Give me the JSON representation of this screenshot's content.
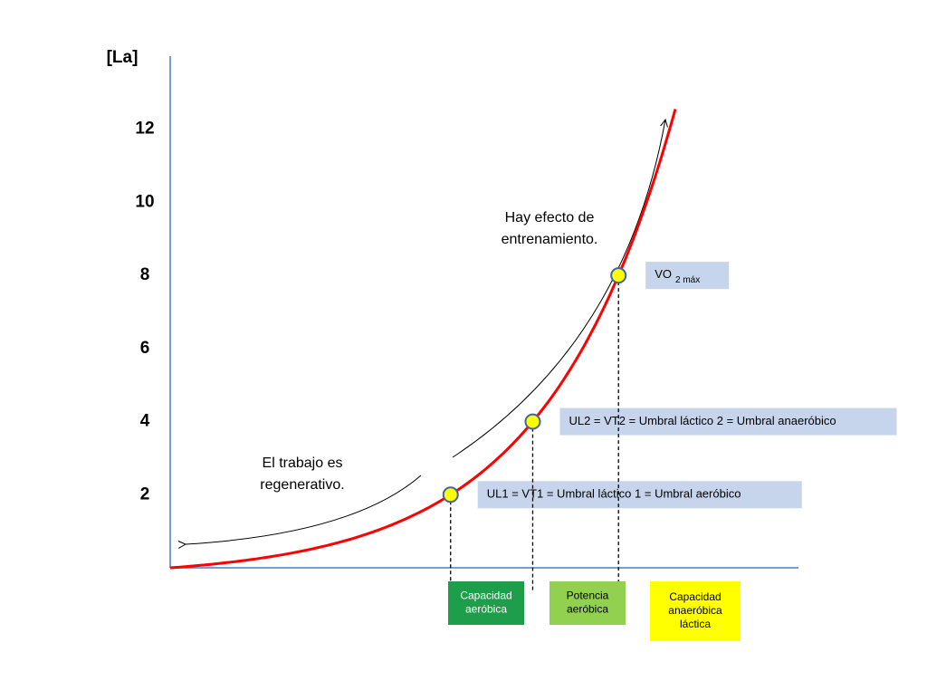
{
  "chart_data": {
    "type": "lactate-curve",
    "y_label": "[La]",
    "ylim": [
      0,
      14
    ],
    "yticks": [
      2,
      4,
      6,
      8,
      10,
      12
    ],
    "line_color": "#ff0000",
    "axis_color": "#4a7ebb",
    "point_color": "#ffff00",
    "label_box_color": "#c6d5ec",
    "points": [
      {
        "value": 2,
        "label": "UL1 = VT1 = Umbral láctico 1 = Umbral aeróbico"
      },
      {
        "value": 4,
        "label": "UL2 = VT2 = Umbral láctico 2 = Umbral anaeróbico"
      },
      {
        "value": 8,
        "label": "VO",
        "label_sub": "2 máx"
      }
    ],
    "zones": [
      {
        "lines": [
          "Capacidad",
          "aeróbica"
        ],
        "color": "#1e9e4a",
        "text_color": "#ffffff"
      },
      {
        "lines": [
          "Potencia",
          "aeróbica"
        ],
        "color": "#92d050",
        "text_color": "#000000"
      },
      {
        "lines": [
          "Capacidad",
          "anaeróbica",
          "láctica"
        ],
        "color": "#ffff00",
        "text_color": "#000000"
      }
    ],
    "annotations": [
      {
        "lines": [
          "Hay efecto de",
          "entrenamiento."
        ]
      },
      {
        "lines": [
          "El trabajo es",
          "regenerativo."
        ]
      }
    ]
  }
}
